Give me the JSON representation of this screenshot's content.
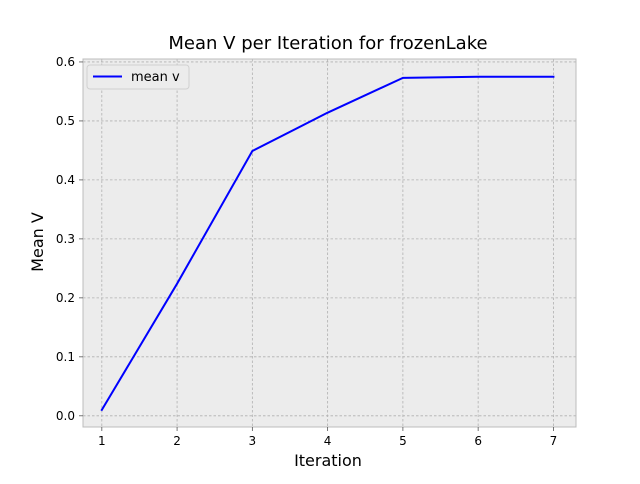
{
  "chart_data": {
    "type": "line",
    "title": "Mean V per Iteration for frozenLake",
    "xlabel": "Iteration",
    "ylabel": "Mean V",
    "x": [
      1,
      2,
      3,
      4,
      5,
      6,
      7
    ],
    "xticks": [
      "1",
      "2",
      "3",
      "4",
      "5",
      "6",
      "7"
    ],
    "yticks": [
      "0.0",
      "0.1",
      "0.2",
      "0.3",
      "0.4",
      "0.5",
      "0.6"
    ],
    "xlim": [
      0.75,
      7.3
    ],
    "ylim": [
      -0.019,
      0.605
    ],
    "grid": true,
    "legend_position": "top-left",
    "series": [
      {
        "name": "mean v",
        "color": "#0000ff",
        "values": [
          0.01,
          0.224,
          0.449,
          0.514,
          0.573,
          0.575,
          0.575
        ]
      }
    ],
    "colors": {
      "plot_background": "#ececec",
      "grid": "#b0b0b0",
      "frame": "#bcbcbc"
    }
  }
}
